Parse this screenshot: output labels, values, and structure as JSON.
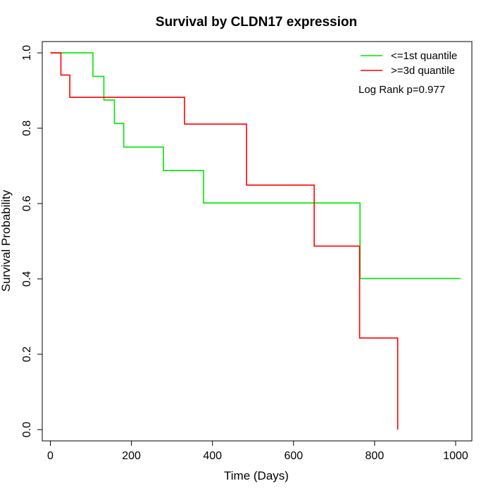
{
  "chart_data": {
    "type": "line",
    "title": "Survival by CLDN17 expression",
    "xlabel": "Time (Days)",
    "ylabel": "Survival Probability",
    "xlim": [
      -20,
      1040
    ],
    "ylim": [
      -0.03,
      1.03
    ],
    "x_ticks": [
      0,
      200,
      400,
      600,
      800,
      1000
    ],
    "x_tick_labels": [
      "0",
      "200",
      "400",
      "600",
      "800",
      "1000"
    ],
    "y_ticks": [
      0.0,
      0.2,
      0.4,
      0.6,
      0.8,
      1.0
    ],
    "y_tick_labels": [
      "0.0",
      "0.2",
      "0.4",
      "0.6",
      "0.8",
      "1.0"
    ],
    "grid": false,
    "legend_position": "top-right",
    "annotation": "Log Rank p=0.977",
    "series": [
      {
        "name": "<=1st quantile",
        "color": "#00e600",
        "step": true,
        "x": [
          0,
          105,
          132,
          158,
          181,
          279,
          378,
          764,
          1012
        ],
        "y": [
          1.0,
          0.9375,
          0.875,
          0.8125,
          0.75,
          0.6875,
          0.6016,
          0.401,
          0.401
        ]
      },
      {
        "name": ">=3d quantile",
        "color": "#ff0000",
        "step": true,
        "x": [
          0,
          26,
          48,
          331,
          484,
          651,
          763,
          857
        ],
        "y": [
          1.0,
          0.941,
          0.882,
          0.811,
          0.649,
          0.487,
          0.243,
          0.0
        ]
      }
    ]
  }
}
